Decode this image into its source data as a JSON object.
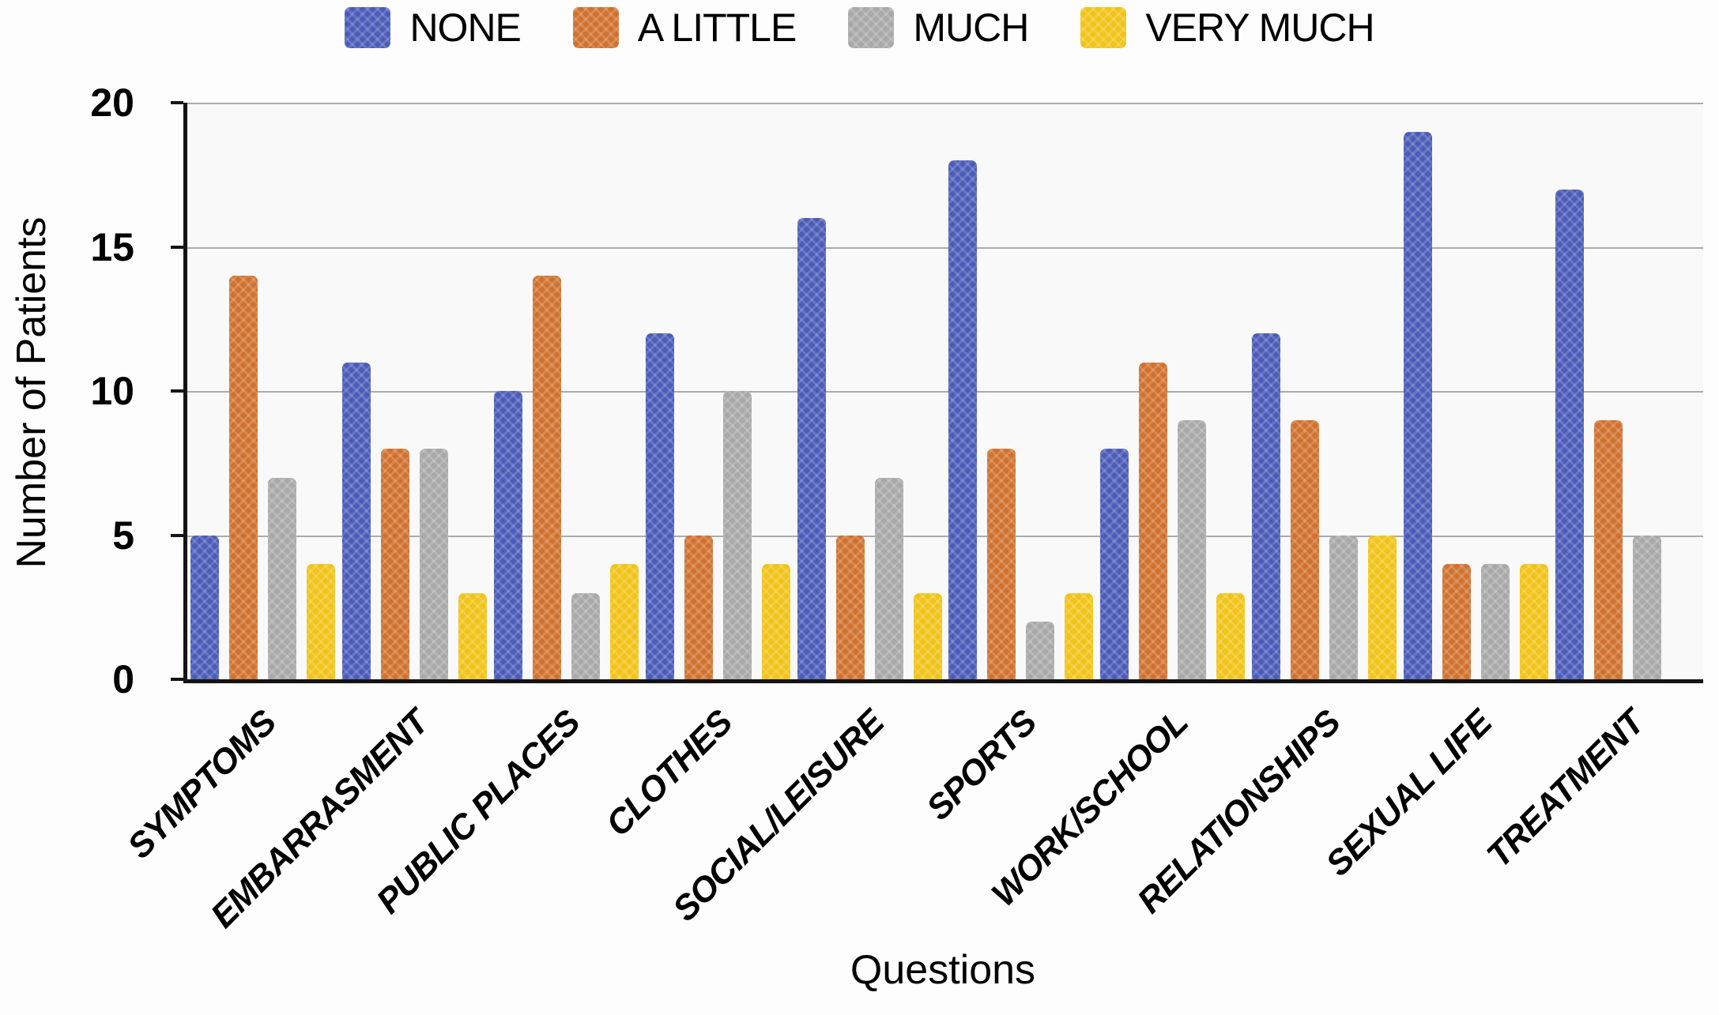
{
  "chart_data": {
    "type": "bar",
    "title": "",
    "xlabel": "Questions",
    "ylabel": "Number of Patients",
    "ylim": [
      0,
      20
    ],
    "yticks": [
      0,
      5,
      10,
      15,
      20
    ],
    "grid": "horizontal",
    "legend_position": "top-center",
    "plot_background": "#f9f9f9",
    "gridline_color": "#ababab",
    "axis_color": "#141414",
    "categories": [
      "SYMPTOMS",
      "EMBARRASMENT",
      "PUBLIC PLACES",
      "CLOTHES",
      "SOCIAL/LEISURE",
      "SPORTS",
      "WORK/SCHOOL",
      "RELATIONSHIPS",
      "SEXUAL LIFE",
      "TREATMENT"
    ],
    "series": [
      {
        "name": "NONE",
        "color": "#4a5bb8",
        "values": [
          5,
          11,
          10,
          12,
          16,
          18,
          8,
          12,
          19,
          17
        ]
      },
      {
        "name": "A LITTLE",
        "color": "#d0712e",
        "values": [
          14,
          8,
          14,
          5,
          5,
          8,
          11,
          9,
          4,
          9
        ]
      },
      {
        "name": "MUCH",
        "color": "#a8a8a8",
        "values": [
          7,
          8,
          3,
          10,
          7,
          2,
          9,
          5,
          4,
          5
        ]
      },
      {
        "name": "VERY MUCH",
        "color": "#f1c318",
        "values": [
          4,
          3,
          4,
          4,
          3,
          3,
          3,
          5,
          4,
          0
        ]
      }
    ]
  }
}
